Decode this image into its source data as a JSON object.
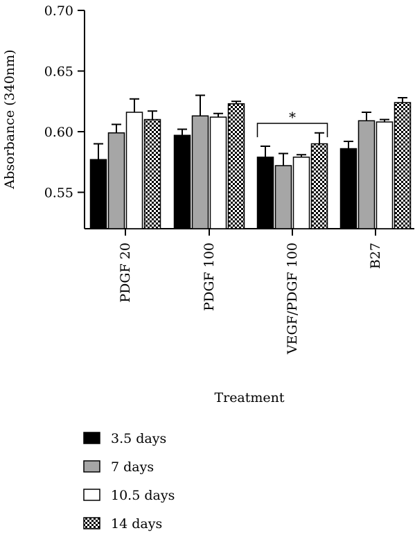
{
  "chart_data": {
    "type": "bar",
    "xlabel": "Treatment",
    "ylabel": "Absorbance (340nm)",
    "ylim": [
      0.52,
      0.7
    ],
    "yticks": [
      0.55,
      0.6,
      0.65,
      0.7
    ],
    "categories": [
      "PDGF 20",
      "PDGF 100",
      "VEGF/PDGF 100",
      "B27"
    ],
    "series": [
      {
        "name": "3.5 days",
        "values": [
          0.577,
          0.597,
          0.579,
          0.586
        ],
        "errors": [
          0.013,
          0.005,
          0.009,
          0.006
        ],
        "fill": "#000000"
      },
      {
        "name": "7 days",
        "values": [
          0.599,
          0.613,
          0.572,
          0.609
        ],
        "errors": [
          0.007,
          0.017,
          0.01,
          0.007
        ],
        "fill": "#a6a6a6"
      },
      {
        "name": "10.5 days",
        "values": [
          0.616,
          0.612,
          0.579,
          0.608
        ],
        "errors": [
          0.011,
          0.003,
          0.002,
          0.002
        ],
        "fill": "#ffffff"
      },
      {
        "name": "14 days",
        "values": [
          0.61,
          0.623,
          0.59,
          0.624
        ],
        "errors": [
          0.007,
          0.002,
          0.009,
          0.004
        ],
        "fill": "checker"
      }
    ],
    "annotations": [
      {
        "text": "*",
        "category": "VEGF/PDGF 100",
        "from_series": 0,
        "to_series": 3
      }
    ],
    "grid": false,
    "legend_position": "bottom-left"
  }
}
